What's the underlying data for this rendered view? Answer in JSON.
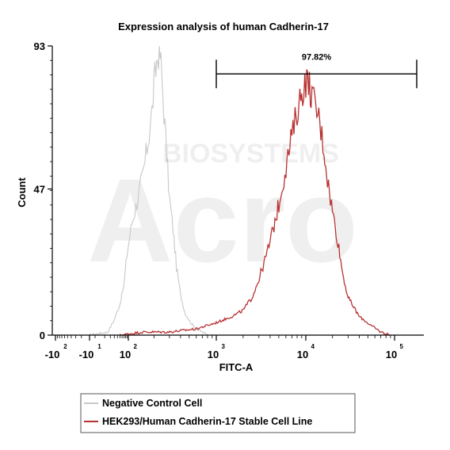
{
  "chart_data": {
    "type": "area",
    "title": "Expression analysis of human Cadherin-17",
    "xlabel": "FITC-A",
    "ylabel": "Count",
    "xscale": "biexponential",
    "x_ticks": [
      {
        "value": -100,
        "base": "-10",
        "exp": "2"
      },
      {
        "value": -10,
        "base": "-10",
        "exp": "1"
      },
      {
        "value": 100,
        "base": "10",
        "exp": "2"
      },
      {
        "value": 1000,
        "base": "10",
        "exp": "3"
      },
      {
        "value": 10000,
        "base": "10",
        "exp": "4"
      },
      {
        "value": 100000,
        "base": "10",
        "exp": "5"
      }
    ],
    "y_ticks": [
      {
        "value": 0,
        "label": "0"
      },
      {
        "value": 47,
        "label": "47"
      },
      {
        "value": 93,
        "label": "93"
      }
    ],
    "ylim": [
      0,
      93
    ],
    "gate": {
      "label": "97.82%",
      "x_range": [
        1000,
        200000
      ],
      "y": 84
    },
    "watermark": {
      "logo": "Acro",
      "sub": "BIOSYSTEMS"
    },
    "series": [
      {
        "name": "Negative Control Cell",
        "color": "#c8c8c8",
        "x": [
          -10,
          15,
          30,
          50,
          70,
          90,
          110,
          130,
          150,
          170,
          190,
          200,
          215,
          230,
          245,
          260,
          280,
          300,
          330,
          360,
          400,
          450,
          520,
          600,
          700,
          800
        ],
        "y": [
          0,
          1,
          5,
          10,
          16,
          26,
          36,
          44,
          52,
          62,
          72,
          80,
          88,
          93,
          84,
          72,
          58,
          44,
          34,
          22,
          13,
          7,
          4,
          2,
          1,
          0
        ]
      },
      {
        "name": "HEK293/Human Cadherin-17 Stable Cell Line",
        "color": "#b83232",
        "x": [
          50,
          150,
          300,
          600,
          1000,
          1500,
          2000,
          2500,
          3000,
          3500,
          4000,
          5000,
          6000,
          7000,
          8000,
          9000,
          10000,
          11000,
          12000,
          14000,
          16000,
          18000,
          20000,
          23000,
          26000,
          30000,
          40000,
          55000,
          70000,
          90000
        ],
        "y": [
          0,
          1,
          1,
          2,
          4,
          6,
          8,
          12,
          18,
          24,
          30,
          42,
          54,
          64,
          72,
          78,
          82,
          80,
          76,
          70,
          60,
          48,
          40,
          30,
          20,
          12,
          6,
          3,
          1,
          0
        ]
      }
    ]
  }
}
